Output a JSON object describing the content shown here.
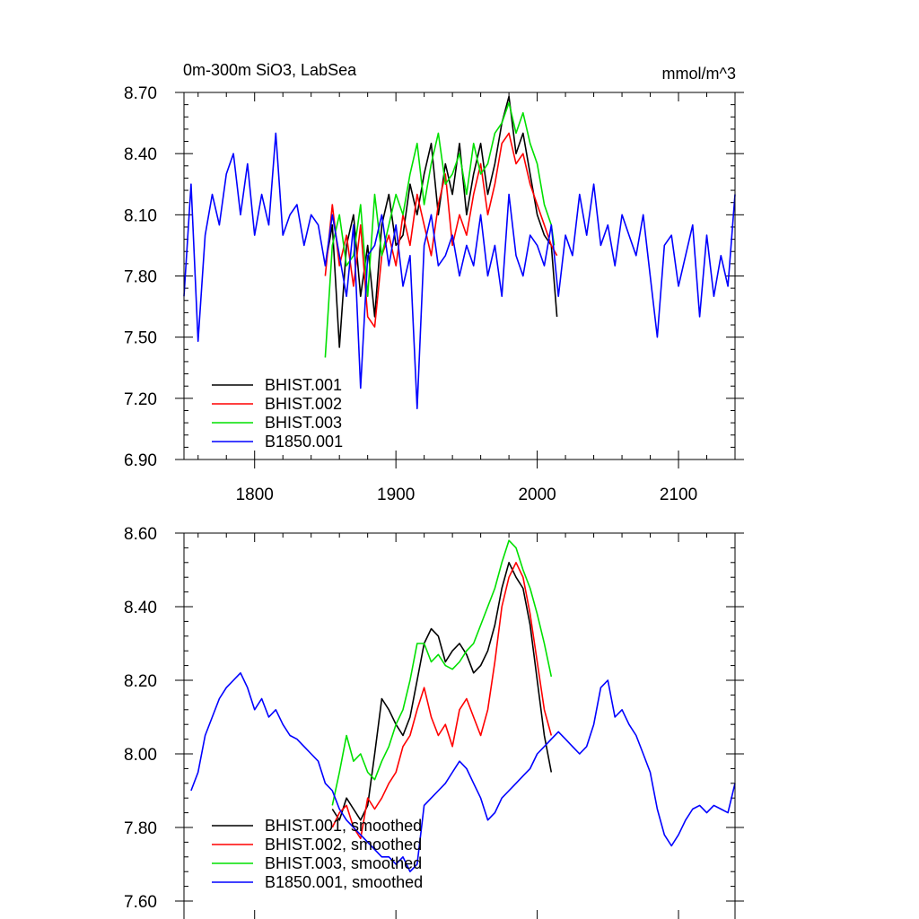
{
  "colors": {
    "BHIST.001": "#000000",
    "BHIST.002": "#ff0000",
    "BHIST.003": "#00e000",
    "B1850.001": "#0000ff"
  },
  "chart_data": [
    {
      "type": "line",
      "title_left": "0m-300m SiO3, LabSea",
      "title_right": "mmol/m^3",
      "xlabel": "",
      "ylabel": "",
      "xlim": [
        1750,
        2140
      ],
      "ylim": [
        6.9,
        8.7
      ],
      "xticks": [
        1800,
        1900,
        2000,
        2100
      ],
      "xtick_labels": [
        "1800",
        "1900",
        "2000",
        "2100"
      ],
      "yticks": [
        6.9,
        7.2,
        7.5,
        7.8,
        8.1,
        8.4,
        8.7
      ],
      "ytick_labels": [
        "6.90",
        "7.20",
        "7.50",
        "7.80",
        "8.10",
        "8.40",
        "8.70"
      ],
      "legend_position": "bottom-left",
      "series": [
        {
          "name": "BHIST.001",
          "label": "BHIST.001",
          "x": [
            1850,
            1855,
            1860,
            1865,
            1870,
            1875,
            1880,
            1885,
            1890,
            1895,
            1900,
            1905,
            1910,
            1915,
            1920,
            1925,
            1930,
            1935,
            1940,
            1945,
            1950,
            1955,
            1960,
            1965,
            1970,
            1975,
            1980,
            1985,
            1990,
            1995,
            2000,
            2005,
            2010,
            2014
          ],
          "values": [
            7.85,
            8.05,
            7.45,
            7.95,
            8.1,
            7.7,
            7.95,
            7.6,
            8.05,
            8.2,
            7.95,
            8.0,
            8.25,
            8.1,
            8.3,
            8.45,
            8.1,
            8.35,
            8.2,
            8.45,
            8.1,
            8.3,
            8.45,
            8.2,
            8.35,
            8.55,
            8.68,
            8.4,
            8.5,
            8.3,
            8.1,
            8.0,
            7.95,
            7.6
          ]
        },
        {
          "name": "BHIST.002",
          "label": "BHIST.002",
          "x": [
            1850,
            1855,
            1860,
            1865,
            1870,
            1875,
            1880,
            1885,
            1890,
            1895,
            1900,
            1905,
            1910,
            1915,
            1920,
            1925,
            1930,
            1935,
            1940,
            1945,
            1950,
            1955,
            1960,
            1965,
            1970,
            1975,
            1980,
            1985,
            1990,
            1995,
            2000,
            2005,
            2010,
            2014
          ],
          "values": [
            7.8,
            8.15,
            7.85,
            8.0,
            7.75,
            8.05,
            7.6,
            7.55,
            7.9,
            8.0,
            7.85,
            8.1,
            7.95,
            8.2,
            8.05,
            7.9,
            8.15,
            8.3,
            7.95,
            8.1,
            8.0,
            8.2,
            8.35,
            8.1,
            8.25,
            8.45,
            8.5,
            8.35,
            8.4,
            8.25,
            8.15,
            8.05,
            7.95,
            7.9
          ]
        },
        {
          "name": "BHIST.003",
          "label": "BHIST.003",
          "x": [
            1850,
            1855,
            1860,
            1865,
            1870,
            1875,
            1880,
            1885,
            1890,
            1895,
            1900,
            1905,
            1910,
            1915,
            1920,
            1925,
            1930,
            1935,
            1940,
            1945,
            1950,
            1955,
            1960,
            1965,
            1970,
            1975,
            1980,
            1985,
            1990,
            1995,
            2000,
            2005,
            2010,
            2012
          ],
          "values": [
            7.4,
            7.95,
            8.1,
            7.85,
            7.9,
            8.15,
            7.7,
            8.2,
            7.9,
            8.05,
            8.2,
            8.1,
            8.3,
            8.45,
            8.15,
            8.35,
            8.5,
            8.25,
            8.3,
            8.4,
            8.2,
            8.45,
            8.3,
            8.35,
            8.5,
            8.55,
            8.65,
            8.5,
            8.6,
            8.45,
            8.35,
            8.15,
            8.05,
            7.95
          ]
        },
        {
          "name": "B1850.001",
          "label": "B1850.001",
          "x": [
            1750,
            1755,
            1760,
            1765,
            1770,
            1775,
            1780,
            1785,
            1790,
            1795,
            1800,
            1805,
            1810,
            1815,
            1820,
            1825,
            1830,
            1835,
            1840,
            1845,
            1850,
            1855,
            1860,
            1865,
            1870,
            1875,
            1880,
            1885,
            1890,
            1895,
            1900,
            1905,
            1910,
            1915,
            1920,
            1925,
            1930,
            1935,
            1940,
            1945,
            1950,
            1955,
            1960,
            1965,
            1970,
            1975,
            1980,
            1985,
            1990,
            1995,
            2000,
            2005,
            2010,
            2015,
            2020,
            2025,
            2030,
            2035,
            2040,
            2045,
            2050,
            2055,
            2060,
            2065,
            2070,
            2075,
            2080,
            2085,
            2090,
            2095,
            2100,
            2105,
            2110,
            2115,
            2120,
            2125,
            2130,
            2135,
            2140
          ],
          "values": [
            7.7,
            8.25,
            7.48,
            8.0,
            8.2,
            8.05,
            8.3,
            8.4,
            8.1,
            8.35,
            8.0,
            8.2,
            8.05,
            8.5,
            8.0,
            8.1,
            8.15,
            7.95,
            8.1,
            8.05,
            7.85,
            8.1,
            7.9,
            7.7,
            8.05,
            7.25,
            7.9,
            7.95,
            8.1,
            7.85,
            8.05,
            7.75,
            7.9,
            7.15,
            7.95,
            8.1,
            7.85,
            7.9,
            8.0,
            7.8,
            7.95,
            7.85,
            8.1,
            7.8,
            7.95,
            7.7,
            8.2,
            7.9,
            7.8,
            8.0,
            7.95,
            7.85,
            8.05,
            7.7,
            8.0,
            7.9,
            8.2,
            8.0,
            8.25,
            7.95,
            8.05,
            7.85,
            8.1,
            8.0,
            7.9,
            8.1,
            7.8,
            7.5,
            7.95,
            8.0,
            7.75,
            7.9,
            8.05,
            7.6,
            8.0,
            7.7,
            7.9,
            7.75,
            8.2
          ]
        }
      ]
    },
    {
      "type": "line",
      "xlabel": "",
      "ylabel": "",
      "xlim": [
        1750,
        2140
      ],
      "ylim": [
        7.6,
        8.6
      ],
      "xticks": [
        1800,
        1900,
        2000,
        2100
      ],
      "yticks": [
        7.6,
        7.8,
        8.0,
        8.2,
        8.4,
        8.6
      ],
      "ytick_labels": [
        "7.60",
        "7.80",
        "8.00",
        "8.20",
        "8.40",
        "8.60"
      ],
      "legend_position": "bottom-left",
      "series": [
        {
          "name": "BHIST.001",
          "label": "BHIST.001, smoothed",
          "x": [
            1855,
            1860,
            1865,
            1870,
            1875,
            1880,
            1885,
            1890,
            1895,
            1900,
            1905,
            1910,
            1915,
            1920,
            1925,
            1930,
            1935,
            1940,
            1945,
            1950,
            1955,
            1960,
            1965,
            1970,
            1975,
            1980,
            1985,
            1990,
            1995,
            2000,
            2005,
            2010
          ],
          "values": [
            7.85,
            7.82,
            7.88,
            7.85,
            7.82,
            7.86,
            8.0,
            8.15,
            8.12,
            8.08,
            8.05,
            8.1,
            8.2,
            8.3,
            8.34,
            8.32,
            8.25,
            8.28,
            8.3,
            8.27,
            8.22,
            8.24,
            8.28,
            8.35,
            8.45,
            8.52,
            8.48,
            8.45,
            8.35,
            8.2,
            8.05,
            7.95
          ]
        },
        {
          "name": "BHIST.002",
          "label": "BHIST.002, smoothed",
          "x": [
            1855,
            1860,
            1865,
            1870,
            1875,
            1880,
            1885,
            1890,
            1895,
            1900,
            1905,
            1910,
            1915,
            1920,
            1925,
            1930,
            1935,
            1940,
            1945,
            1950,
            1955,
            1960,
            1965,
            1970,
            1975,
            1980,
            1985,
            1990,
            1995,
            2000,
            2005,
            2010
          ],
          "values": [
            7.8,
            7.84,
            7.86,
            7.8,
            7.77,
            7.88,
            7.85,
            7.88,
            7.92,
            7.95,
            8.02,
            8.05,
            8.12,
            8.18,
            8.1,
            8.05,
            8.08,
            8.02,
            8.12,
            8.15,
            8.1,
            8.05,
            8.12,
            8.25,
            8.4,
            8.48,
            8.52,
            8.48,
            8.38,
            8.25,
            8.12,
            8.05
          ]
        },
        {
          "name": "BHIST.003",
          "label": "BHIST.003, smoothed",
          "x": [
            1855,
            1860,
            1865,
            1870,
            1875,
            1880,
            1885,
            1890,
            1895,
            1900,
            1905,
            1910,
            1915,
            1920,
            1925,
            1930,
            1935,
            1940,
            1945,
            1950,
            1955,
            1960,
            1965,
            1970,
            1975,
            1980,
            1985,
            1990,
            1995,
            2000,
            2005,
            2010
          ],
          "values": [
            7.86,
            7.95,
            8.05,
            7.98,
            8.0,
            7.95,
            7.93,
            7.98,
            8.02,
            8.08,
            8.12,
            8.2,
            8.3,
            8.3,
            8.25,
            8.27,
            8.24,
            8.23,
            8.25,
            8.28,
            8.3,
            8.35,
            8.4,
            8.45,
            8.52,
            8.58,
            8.56,
            8.5,
            8.45,
            8.38,
            8.3,
            8.21
          ]
        },
        {
          "name": "B1850.001",
          "label": "B1850.001, smoothed",
          "x": [
            1755,
            1760,
            1765,
            1770,
            1775,
            1780,
            1785,
            1790,
            1795,
            1800,
            1805,
            1810,
            1815,
            1820,
            1825,
            1830,
            1835,
            1840,
            1845,
            1850,
            1855,
            1860,
            1865,
            1870,
            1875,
            1880,
            1885,
            1890,
            1895,
            1900,
            1905,
            1910,
            1915,
            1920,
            1925,
            1930,
            1935,
            1940,
            1945,
            1950,
            1955,
            1960,
            1965,
            1970,
            1975,
            1980,
            1985,
            1990,
            1995,
            2000,
            2005,
            2010,
            2015,
            2020,
            2025,
            2030,
            2035,
            2040,
            2045,
            2050,
            2055,
            2060,
            2065,
            2070,
            2075,
            2080,
            2085,
            2090,
            2095,
            2100,
            2105,
            2110,
            2115,
            2120,
            2125,
            2130,
            2135,
            2140
          ],
          "values": [
            7.9,
            7.95,
            8.05,
            8.1,
            8.15,
            8.18,
            8.2,
            8.22,
            8.18,
            8.12,
            8.15,
            8.1,
            8.12,
            8.08,
            8.05,
            8.04,
            8.02,
            8.0,
            7.98,
            7.92,
            7.9,
            7.85,
            7.82,
            7.8,
            7.78,
            7.76,
            7.74,
            7.72,
            7.72,
            7.7,
            7.72,
            7.68,
            7.7,
            7.86,
            7.88,
            7.9,
            7.92,
            7.95,
            7.98,
            7.96,
            7.92,
            7.88,
            7.82,
            7.84,
            7.88,
            7.9,
            7.92,
            7.94,
            7.96,
            8.0,
            8.02,
            8.04,
            8.06,
            8.04,
            8.02,
            8.0,
            8.02,
            8.08,
            8.18,
            8.2,
            8.1,
            8.12,
            8.08,
            8.05,
            8.0,
            7.95,
            7.85,
            7.78,
            7.75,
            7.78,
            7.82,
            7.85,
            7.86,
            7.84,
            7.86,
            7.85,
            7.84,
            7.92
          ]
        }
      ]
    }
  ]
}
